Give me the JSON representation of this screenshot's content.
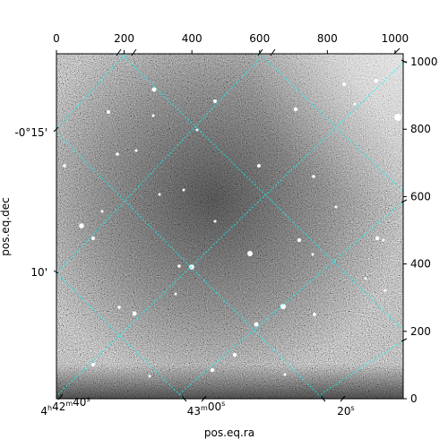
{
  "figure": {
    "xlabel": "pos.eq.ra",
    "ylabel": "pos.eq.dec"
  },
  "chart_data": {
    "type": "heatmap",
    "title": "",
    "colormap": "gray",
    "grid": true,
    "grid_color": "#00ffff",
    "xlabel": "pos.eq.ra",
    "ylabel": "pos.eq.dec",
    "pixel_axes": {
      "xlim": [
        0,
        1024
      ],
      "ylim": [
        0,
        1024
      ],
      "x_ticks": [
        "0",
        "200",
        "400",
        "600",
        "800",
        "1000"
      ],
      "y_ticks": [
        "0",
        "200",
        "400",
        "600",
        "800",
        "1000"
      ]
    },
    "world_axes": {
      "ra_ticks": [
        {
          "h": "4",
          "h_unit": "h",
          "m": "42",
          "m_unit": "m",
          "s": "40",
          "s_unit": "s"
        },
        {
          "m": "43",
          "m_unit": "m",
          "s": "00",
          "s_unit": "s"
        },
        {
          "s": "20",
          "s_unit": "s"
        }
      ],
      "dec_ticks": [
        "-0°15'",
        "10'"
      ]
    }
  }
}
